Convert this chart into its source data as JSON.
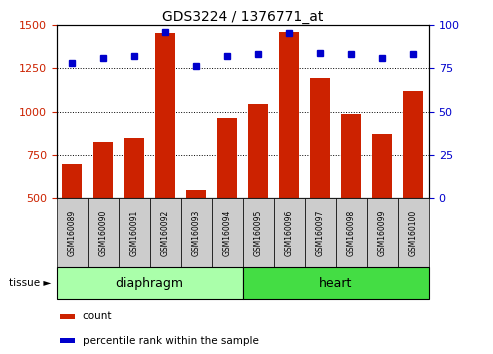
{
  "title": "GDS3224 / 1376771_at",
  "samples": [
    "GSM160089",
    "GSM160090",
    "GSM160091",
    "GSM160092",
    "GSM160093",
    "GSM160094",
    "GSM160095",
    "GSM160096",
    "GSM160097",
    "GSM160098",
    "GSM160099",
    "GSM160100"
  ],
  "counts": [
    700,
    825,
    850,
    1450,
    545,
    960,
    1045,
    1460,
    1195,
    985,
    870,
    1120
  ],
  "percentiles": [
    78,
    81,
    82,
    96,
    76,
    82,
    83,
    95,
    84,
    83,
    81,
    83
  ],
  "bar_color": "#cc2200",
  "dot_color": "#0000cc",
  "ylim_left": [
    500,
    1500
  ],
  "ylim_right": [
    0,
    100
  ],
  "yticks_left": [
    500,
    750,
    1000,
    1250,
    1500
  ],
  "yticks_right": [
    0,
    25,
    50,
    75,
    100
  ],
  "groups": [
    {
      "label": "diaphragm",
      "start": 0,
      "end": 6,
      "color": "#aaffaa",
      "edge_color": "#000000"
    },
    {
      "label": "heart",
      "start": 6,
      "end": 12,
      "color": "#44dd44",
      "edge_color": "#000000"
    }
  ],
  "group_row_label": "tissue",
  "legend_items": [
    {
      "color": "#cc2200",
      "label": "count"
    },
    {
      "color": "#0000cc",
      "label": "percentile rank within the sample"
    }
  ],
  "tick_label_color_left": "#cc2200",
  "tick_label_color_right": "#0000cc",
  "bar_width": 0.65,
  "label_box_color": "#cccccc",
  "background_color": "#ffffff"
}
